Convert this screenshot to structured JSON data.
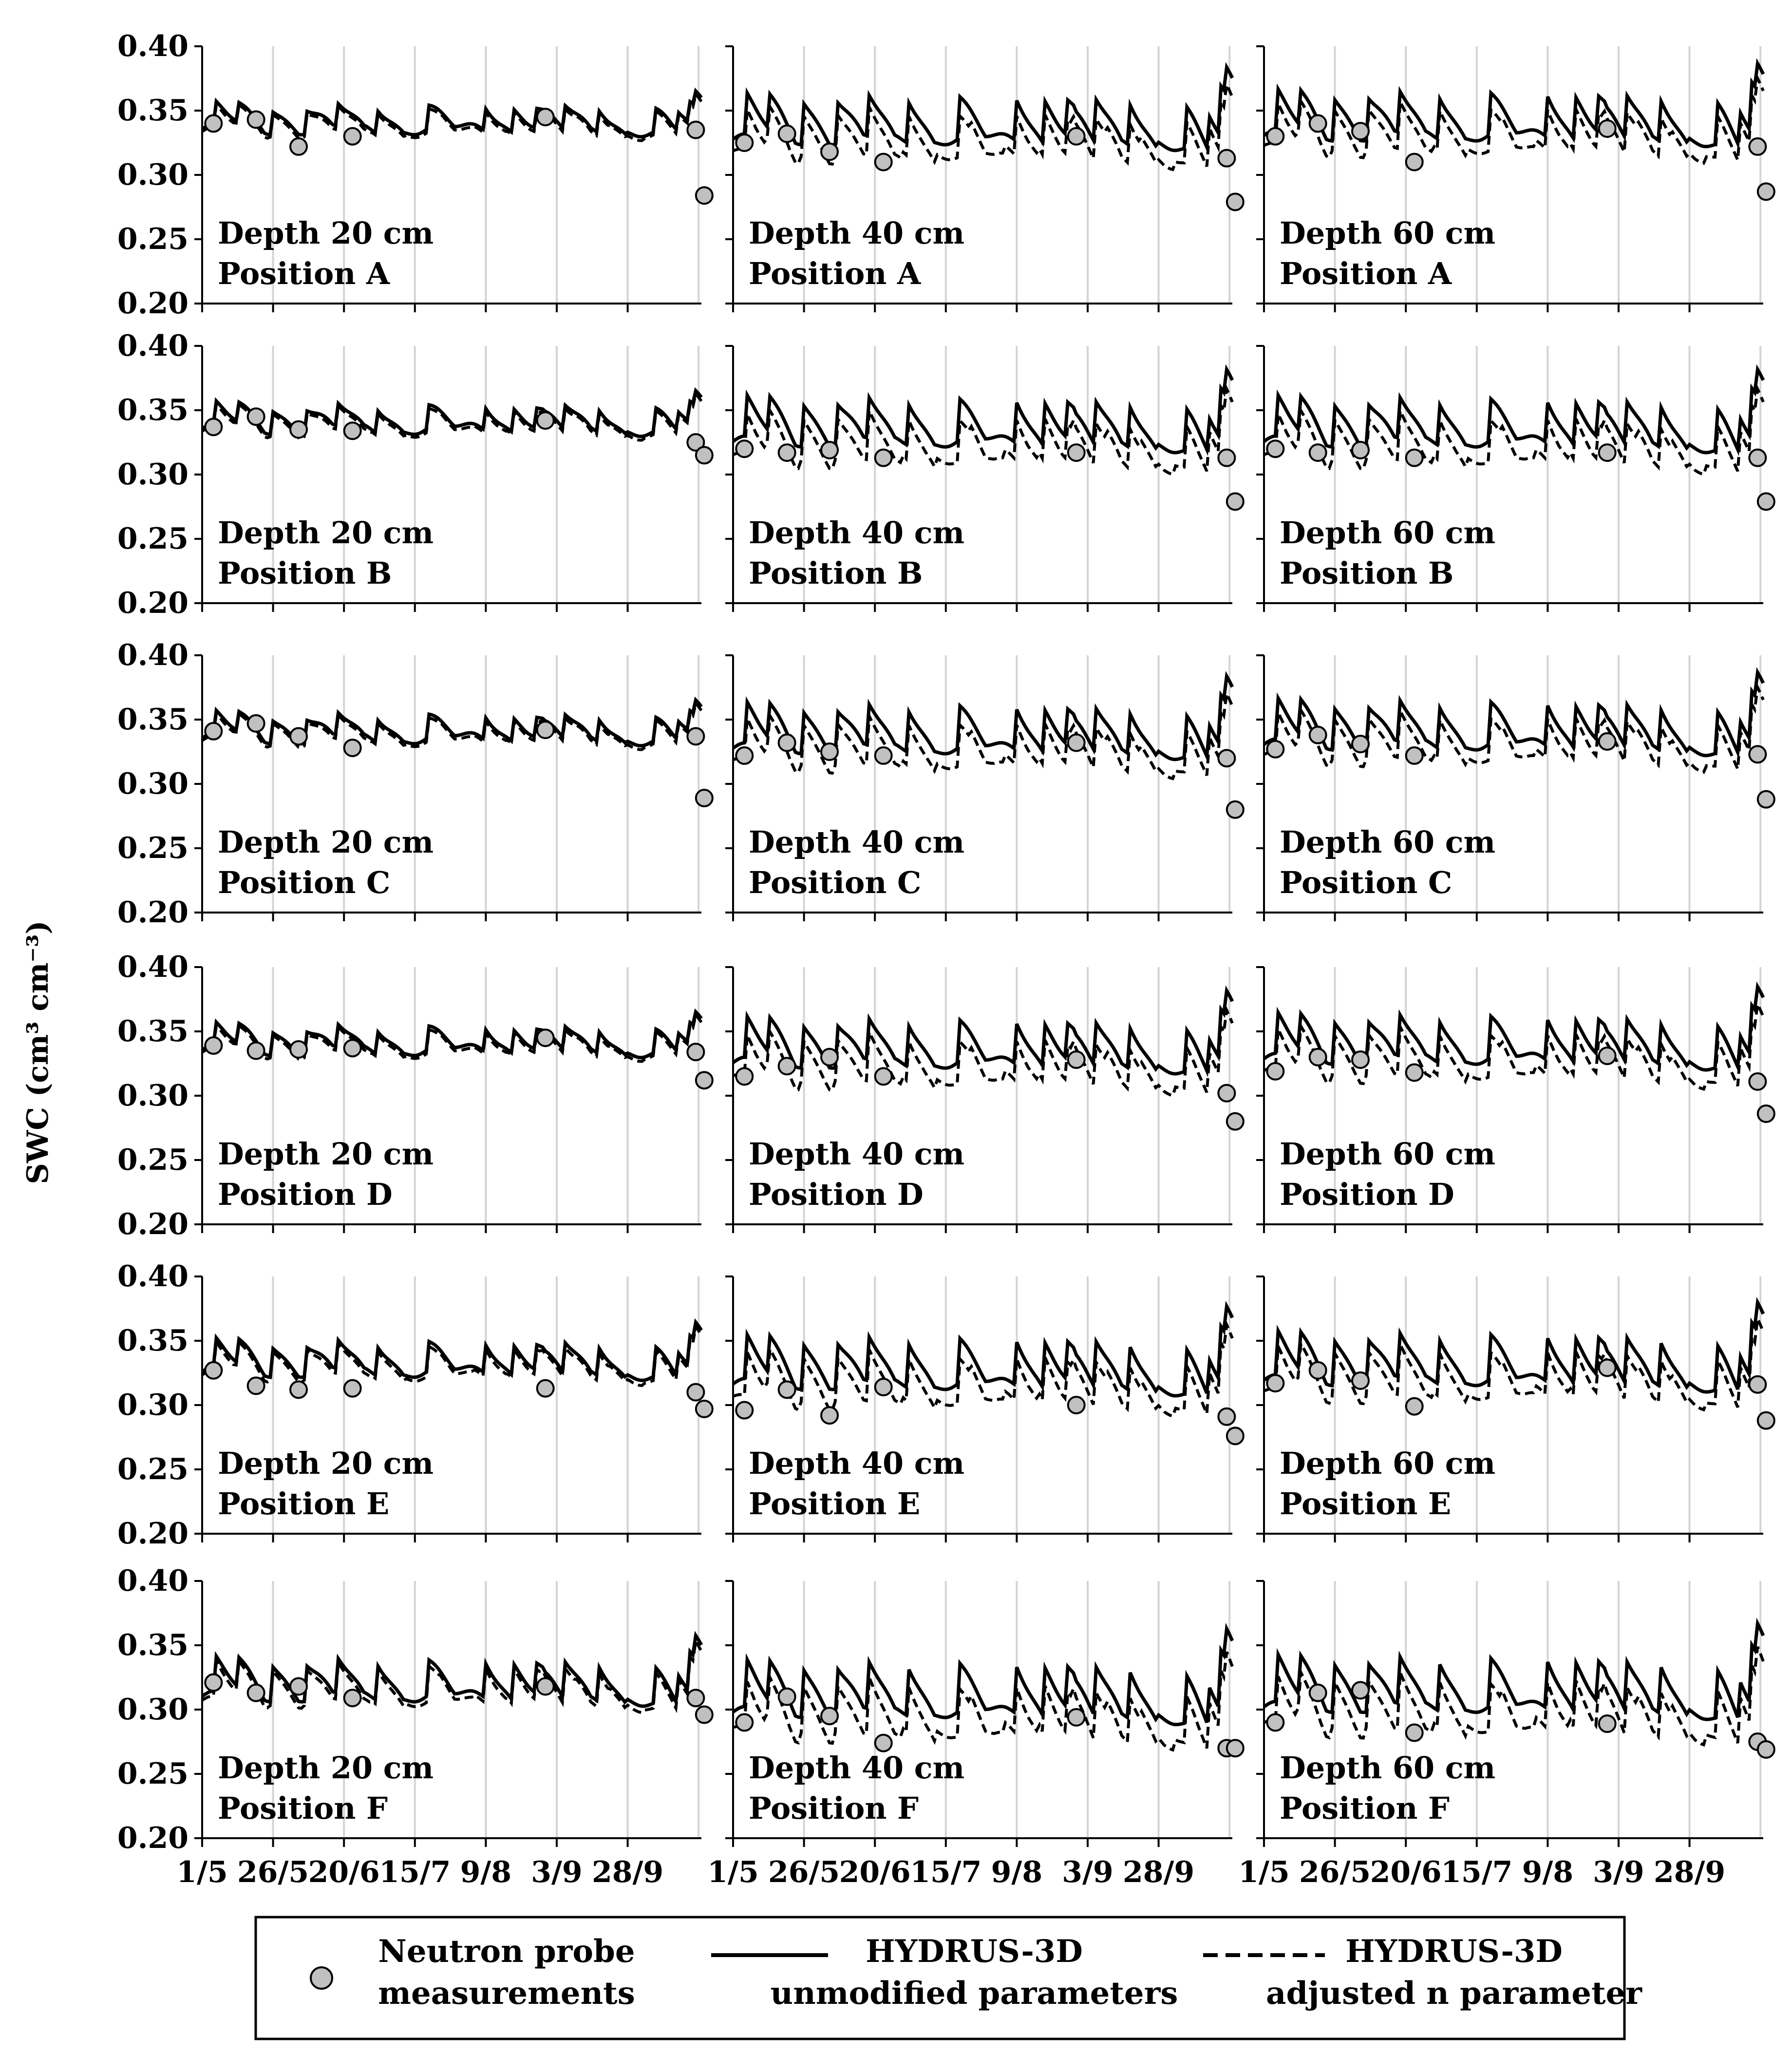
{
  "chart_data": {
    "type": "line",
    "ylabel": "SWC (cm³ cm⁻³)",
    "ylim": [
      0.2,
      0.4
    ],
    "yticks": [
      "0.40",
      "0.35",
      "0.30",
      "0.25",
      "0.20"
    ],
    "x_domain": [
      "1/5",
      "24/10"
    ],
    "x_ticks": [
      "1/5",
      "26/5",
      "20/6",
      "15/7",
      "9/8",
      "3/9",
      "28/9"
    ],
    "grid": "vertical",
    "legend": {
      "placement": "bottom",
      "items": [
        {
          "id": "measured",
          "line1": "Neutron probe",
          "line2": "measurements"
        },
        {
          "id": "unmodified",
          "line1": "HYDRUS-3D",
          "line2": "unmodified parameters"
        },
        {
          "id": "adjusted",
          "line1": "HYDRUS-3D",
          "line2": "adjusted n parameter"
        }
      ]
    },
    "series_names": [
      "Neutron probe measurements",
      "HYDRUS-3D unmodified parameters",
      "HYDRUS-3D adjusted n parameter"
    ],
    "measurement_dates": [
      "5/5",
      "20/5",
      "4/6",
      "23/6",
      "30/8",
      "22/10",
      "25/10"
    ],
    "panels": [
      {
        "depth_label": "Depth 20 cm",
        "position_label": "Position A",
        "depth_cm": 20,
        "position": "A",
        "measured": [
          0.34,
          0.343,
          0.322,
          0.33,
          0.345,
          0.335,
          0.284
        ],
        "unmodified_mean": 0.345,
        "adjusted_offset": 0.003,
        "drawdown": 0.4
      },
      {
        "depth_label": "Depth 40 cm",
        "position_label": "Position A",
        "depth_cm": 40,
        "position": "A",
        "measured": [
          0.325,
          0.332,
          0.318,
          0.31,
          0.33,
          0.313,
          0.279
        ],
        "unmodified_mean": 0.345,
        "adjusted_offset": 0.015,
        "drawdown": 1.0
      },
      {
        "depth_label": "Depth 60 cm",
        "position_label": "Position A",
        "depth_cm": 60,
        "position": "A",
        "measured": [
          0.33,
          0.34,
          0.334,
          0.31,
          0.336,
          0.322,
          0.287
        ],
        "unmodified_mean": 0.348,
        "adjusted_offset": 0.013,
        "drawdown": 1.0
      },
      {
        "depth_label": "Depth 20 cm",
        "position_label": "Position B",
        "depth_cm": 20,
        "position": "B",
        "measured": [
          0.337,
          0.345,
          0.335,
          0.334,
          0.342,
          0.325,
          0.315
        ],
        "unmodified_mean": 0.345,
        "adjusted_offset": 0.003,
        "drawdown": 0.4
      },
      {
        "depth_label": "Depth 40 cm",
        "position_label": "Position B",
        "depth_cm": 40,
        "position": "B",
        "measured": [
          0.32,
          0.317,
          0.319,
          0.313,
          0.317,
          0.313,
          0.279
        ],
        "unmodified_mean": 0.343,
        "adjusted_offset": 0.017,
        "drawdown": 1.0
      },
      {
        "depth_label": "Depth 60 cm",
        "position_label": "Position B",
        "depth_cm": 60,
        "position": "B",
        "measured": [
          0.32,
          0.317,
          0.319,
          0.313,
          0.317,
          0.313,
          0.279
        ],
        "unmodified_mean": 0.343,
        "adjusted_offset": 0.017,
        "drawdown": 1.0
      },
      {
        "depth_label": "Depth 20 cm",
        "position_label": "Position C",
        "depth_cm": 20,
        "position": "C",
        "measured": [
          0.341,
          0.347,
          0.337,
          0.328,
          0.342,
          0.337,
          0.289
        ],
        "unmodified_mean": 0.345,
        "adjusted_offset": 0.003,
        "drawdown": 0.4
      },
      {
        "depth_label": "Depth 40 cm",
        "position_label": "Position C",
        "depth_cm": 40,
        "position": "C",
        "measured": [
          0.322,
          0.332,
          0.325,
          0.322,
          0.332,
          0.32,
          0.28
        ],
        "unmodified_mean": 0.345,
        "adjusted_offset": 0.015,
        "drawdown": 1.0
      },
      {
        "depth_label": "Depth 60 cm",
        "position_label": "Position C",
        "depth_cm": 60,
        "position": "C",
        "measured": [
          0.327,
          0.338,
          0.331,
          0.322,
          0.333,
          0.323,
          0.288
        ],
        "unmodified_mean": 0.348,
        "adjusted_offset": 0.013,
        "drawdown": 1.0
      },
      {
        "depth_label": "Depth 20 cm",
        "position_label": "Position D",
        "depth_cm": 20,
        "position": "D",
        "measured": [
          0.339,
          0.335,
          0.336,
          0.337,
          0.345,
          0.334,
          0.312
        ],
        "unmodified_mean": 0.345,
        "adjusted_offset": 0.003,
        "drawdown": 0.4
      },
      {
        "depth_label": "Depth 40 cm",
        "position_label": "Position D",
        "depth_cm": 40,
        "position": "D",
        "measured": [
          0.315,
          0.323,
          0.33,
          0.315,
          0.328,
          0.302,
          0.28
        ],
        "unmodified_mean": 0.343,
        "adjusted_offset": 0.017,
        "drawdown": 1.0
      },
      {
        "depth_label": "Depth 60 cm",
        "position_label": "Position D",
        "depth_cm": 60,
        "position": "D",
        "measured": [
          0.319,
          0.33,
          0.328,
          0.318,
          0.331,
          0.311,
          0.286
        ],
        "unmodified_mean": 0.346,
        "adjusted_offset": 0.015,
        "drawdown": 1.0
      },
      {
        "depth_label": "Depth 20 cm",
        "position_label": "Position E",
        "depth_cm": 20,
        "position": "E",
        "measured": [
          0.327,
          0.315,
          0.312,
          0.313,
          0.313,
          0.31,
          0.297
        ],
        "unmodified_mean": 0.338,
        "adjusted_offset": 0.004,
        "drawdown": 0.6
      },
      {
        "depth_label": "Depth 40 cm",
        "position_label": "Position E",
        "depth_cm": 40,
        "position": "E",
        "measured": [
          0.296,
          0.312,
          0.292,
          0.314,
          0.3,
          0.291,
          0.276
        ],
        "unmodified_mean": 0.335,
        "adjusted_offset": 0.016,
        "drawdown": 1.1
      },
      {
        "depth_label": "Depth 60 cm",
        "position_label": "Position E",
        "depth_cm": 60,
        "position": "E",
        "measured": [
          0.317,
          0.327,
          0.319,
          0.299,
          0.329,
          0.316,
          0.288
        ],
        "unmodified_mean": 0.338,
        "adjusted_offset": 0.014,
        "drawdown": 1.1
      },
      {
        "depth_label": "Depth 20 cm",
        "position_label": "Position F",
        "depth_cm": 20,
        "position": "F",
        "measured": [
          0.321,
          0.313,
          0.318,
          0.309,
          0.318,
          0.309,
          0.296
        ],
        "unmodified_mean": 0.325,
        "adjusted_offset": 0.005,
        "drawdown": 0.8
      },
      {
        "depth_label": "Depth 40 cm",
        "position_label": "Position F",
        "depth_cm": 40,
        "position": "F",
        "measured": [
          0.29,
          0.31,
          0.295,
          0.274,
          0.294,
          0.27,
          0.27
        ],
        "unmodified_mean": 0.318,
        "adjusted_offset": 0.02,
        "drawdown": 1.2
      },
      {
        "depth_label": "Depth 60 cm",
        "position_label": "Position F",
        "depth_cm": 60,
        "position": "F",
        "measured": [
          0.29,
          0.313,
          0.315,
          0.282,
          0.289,
          0.275,
          0.269
        ],
        "unmodified_mean": 0.322,
        "adjusted_offset": 0.02,
        "drawdown": 1.2
      }
    ]
  }
}
